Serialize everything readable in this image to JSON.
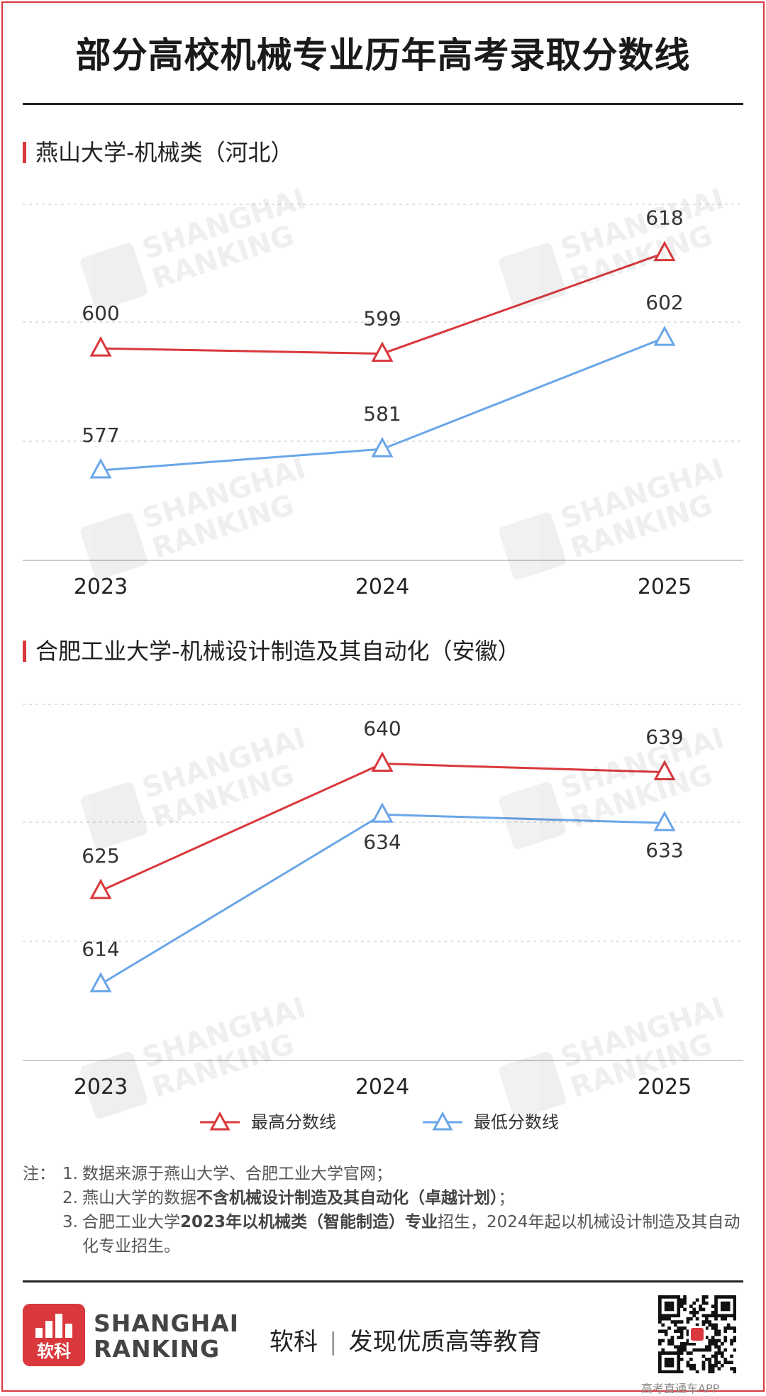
{
  "title": "部分高校机械专业历年高考录取分数线",
  "charts": [
    {
      "title": "燕山大学-机械类（河北）"
    },
    {
      "title": "合肥工业大学-机械设计制造及其自动化（安徽）"
    }
  ],
  "chart_data": [
    {
      "type": "line",
      "title": "燕山大学-机械类（河北）",
      "x": [
        "2023",
        "2024",
        "2025"
      ],
      "series": [
        {
          "name": "最高分数线",
          "values": [
            600,
            599,
            618
          ],
          "color": "#d9383c"
        },
        {
          "name": "最低分数线",
          "values": [
            577,
            581,
            602
          ],
          "color": "#6aa6e8"
        }
      ],
      "ylim": [
        560,
        632
      ],
      "grid": true
    },
    {
      "type": "line",
      "title": "合肥工业大学-机械设计制造及其自动化（安徽）",
      "x": [
        "2023",
        "2024",
        "2025"
      ],
      "series": [
        {
          "name": "最高分数线",
          "values": [
            625,
            640,
            639
          ],
          "color": "#d9383c"
        },
        {
          "name": "最低分数线",
          "values": [
            614,
            634,
            633
          ],
          "color": "#6aa6e8"
        }
      ],
      "ylim": [
        605,
        650
      ],
      "grid": true
    }
  ],
  "legend": {
    "max_label": "最高分数线",
    "min_label": "最低分数线",
    "max_color": "#d9383c",
    "min_color": "#6aa6e8"
  },
  "notes": {
    "prefix": "注：",
    "n1": "1.",
    "n1_text": "数据来源于燕山大学、合肥工业大学官网；",
    "n2": "2.",
    "n2_a": "燕山大学的数据",
    "n2_b": "不含机械设计制造及其自动化（卓越计划）",
    "n2_c": "；",
    "n3": "3.",
    "n3_a": "合肥工业大学",
    "n3_b": "2023年以机械类（智能制造）专业",
    "n3_c": "招生，2024年起以机械设计制造及其自动化专业招生。"
  },
  "watermark": {
    "line1": "SHANGHAI",
    "line2": "RANKING",
    "cn": "软科"
  },
  "footer": {
    "brand_line1": "SHANGHAI",
    "brand_line2": "RANKING",
    "logo_cn": "软科",
    "slogan_a": "软科",
    "slogan_sep": "|",
    "slogan_b": "发现优质高等教育",
    "qr_caption": "高考直通车APP"
  }
}
